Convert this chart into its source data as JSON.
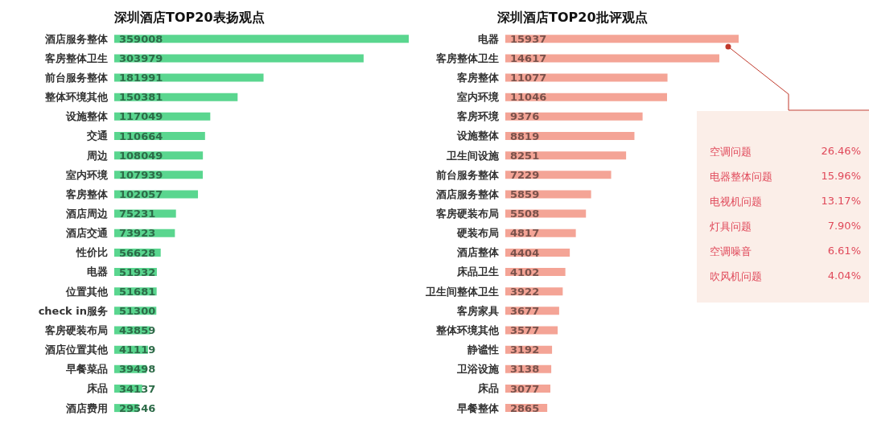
{
  "chart_data": [
    {
      "type": "bar",
      "orientation": "horizontal",
      "title": "深圳酒店TOP20表扬观点",
      "data_labels": true,
      "categories": [
        "酒店服务整体",
        "客房整体卫生",
        "前台服务整体",
        "整体环境其他",
        "设施整体",
        "交通",
        "周边",
        "室内环境",
        "客房整体",
        "酒店周边",
        "酒店交通",
        "性价比",
        "电器",
        "位置其他",
        "check in服务",
        "客房硬装布局",
        "酒店位置其他",
        "早餐菜品",
        "床品",
        "酒店费用"
      ],
      "values": [
        359008,
        303979,
        181991,
        150381,
        117049,
        110664,
        108049,
        107939,
        102057,
        75231,
        73923,
        56628,
        51932,
        51681,
        51300,
        43859,
        41119,
        39498,
        34137,
        29546
      ],
      "color": "#5ad68f"
    },
    {
      "type": "bar",
      "orientation": "horizontal",
      "title": "深圳酒店TOP20批评观点",
      "data_labels": true,
      "categories": [
        "电器",
        "客房整体卫生",
        "客房整体",
        "室内环境",
        "客房环境",
        "设施整体",
        "卫生间设施",
        "前台服务整体",
        "酒店服务整体",
        "客房硬装布局",
        "硬装布局",
        "酒店整体",
        "床品卫生",
        "卫生间整体卫生",
        "客房家具",
        "整体环境其他",
        "静谧性",
        "卫浴设施",
        "床品",
        "早餐整体"
      ],
      "values": [
        15937,
        14617,
        11077,
        11046,
        9376,
        8819,
        8251,
        7229,
        5859,
        5508,
        4817,
        4404,
        4102,
        3922,
        3677,
        3577,
        3192,
        3138,
        3077,
        2865
      ],
      "color": "#f4a496"
    },
    {
      "type": "other",
      "categories": [
        "空调问题",
        "电器整体问题",
        "电视机问题",
        "灯具问题",
        "空调噪音",
        "吹风机问题"
      ],
      "value_labels": [
        "26.46%",
        "15.96%",
        "13.17%",
        "7.90%",
        "6.61%",
        "4.04%"
      ]
    }
  ]
}
